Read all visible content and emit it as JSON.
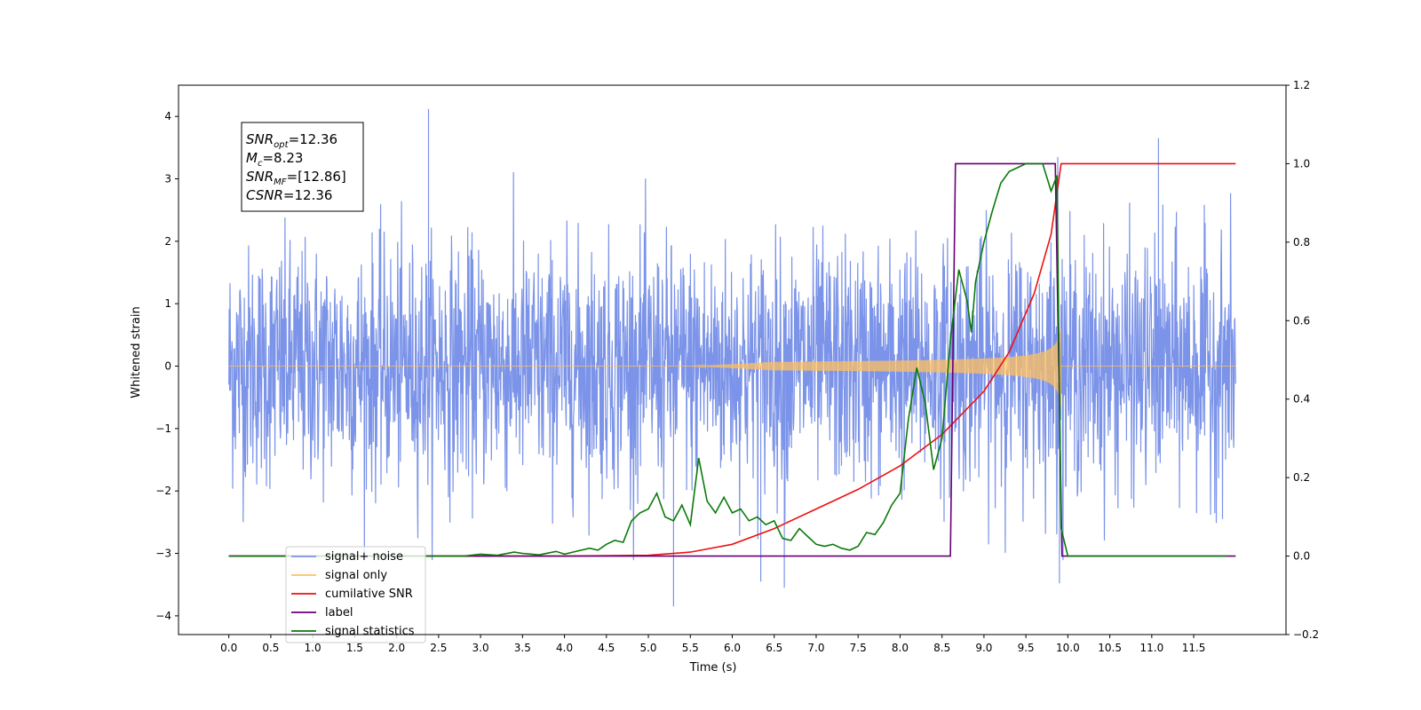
{
  "chart_data": {
    "type": "line",
    "title": "",
    "xlabel": "Time (s)",
    "ylabel": "Whitened strain",
    "xlim": [
      -0.6,
      12.6
    ],
    "ylim": [
      -4.3,
      4.5
    ],
    "y2lim": [
      -0.2,
      1.2
    ],
    "x_ticks": [
      0.0,
      0.5,
      1.0,
      1.5,
      2.0,
      2.5,
      3.0,
      3.5,
      4.0,
      4.5,
      5.0,
      5.5,
      6.0,
      6.5,
      7.0,
      7.5,
      8.0,
      8.5,
      9.0,
      9.5,
      10.0,
      10.5,
      11.0,
      11.5
    ],
    "x_tick_labels": [
      "0.0",
      "0.5",
      "1.0",
      "1.5",
      "2.0",
      "2.5",
      "3.0",
      "3.5",
      "4.0",
      "4.5",
      "5.0",
      "5.5",
      "6.0",
      "6.5",
      "7.0",
      "7.5",
      "8.0",
      "8.5",
      "9.0",
      "9.5",
      "10.0",
      "10.5",
      "11.0",
      "11.5"
    ],
    "y_ticks": [
      -4,
      -3,
      -2,
      -1,
      0,
      1,
      2,
      3,
      4
    ],
    "y_tick_labels": [
      "−4",
      "−3",
      "−2",
      "−1",
      "0",
      "1",
      "2",
      "3",
      "4"
    ],
    "y2_ticks": [
      -0.2,
      0.0,
      0.2,
      0.4,
      0.6,
      0.8,
      1.0,
      1.2
    ],
    "y2_tick_labels": [
      "−0.2",
      "0.0",
      "0.2",
      "0.4",
      "0.6",
      "0.8",
      "1.0",
      "1.2"
    ],
    "grid": false,
    "legend_position": "bottom-left",
    "annotation": {
      "lines": [
        {
          "main": "SNR",
          "sub": "opt",
          "value": "=12.36"
        },
        {
          "main": "M",
          "sub": "c",
          "value": "=8.23"
        },
        {
          "main": "SNR",
          "sub": "MF",
          "value": "=[12.86]"
        },
        {
          "main": "CSNR",
          "sub": "",
          "value": "=12.36"
        }
      ]
    },
    "series": [
      {
        "name": "signal+ noise",
        "axis": "left",
        "color": "#7b93e8",
        "kind": "noise",
        "x_range": [
          0.0,
          12.0
        ],
        "std": 1.0,
        "spikes": [
          {
            "x": 2.38,
            "y": 4.12
          },
          {
            "x": 11.08,
            "y": 3.65
          },
          {
            "x": 9.88,
            "y": 3.35
          },
          {
            "x": 5.3,
            "y": -3.85
          },
          {
            "x": 6.62,
            "y": -3.55
          },
          {
            "x": 6.34,
            "y": -3.45
          },
          {
            "x": 9.9,
            "y": -3.48
          }
        ]
      },
      {
        "name": "signal only",
        "axis": "left",
        "color": "#ffc060",
        "kind": "chirp",
        "t_start": 5.5,
        "t_merger": 9.92,
        "peak_amplitude": 1.0
      },
      {
        "name": "cumilative SNR",
        "axis": "right",
        "color": "#ee1111",
        "x": [
          0.0,
          4.0,
          5.0,
          5.5,
          6.0,
          6.5,
          7.0,
          7.5,
          8.0,
          8.5,
          9.0,
          9.3,
          9.6,
          9.8,
          9.92,
          10.0,
          12.0
        ],
        "y": [
          0.0,
          0.0,
          0.002,
          0.01,
          0.03,
          0.07,
          0.12,
          0.17,
          0.23,
          0.31,
          0.42,
          0.52,
          0.67,
          0.82,
          1.0,
          1.0,
          1.0
        ]
      },
      {
        "name": "label",
        "axis": "right",
        "color": "#660077",
        "x": [
          0.0,
          8.6,
          8.66,
          9.85,
          9.93,
          12.0
        ],
        "y": [
          0.0,
          0.0,
          1.0,
          1.0,
          0.0,
          0.0
        ]
      },
      {
        "name": "signal statistics",
        "axis": "right",
        "color": "#0a7a0a",
        "x": [
          0.0,
          2.8,
          3.0,
          3.2,
          3.4,
          3.5,
          3.7,
          3.9,
          4.0,
          4.1,
          4.3,
          4.4,
          4.5,
          4.6,
          4.7,
          4.8,
          4.9,
          5.0,
          5.1,
          5.2,
          5.3,
          5.4,
          5.5,
          5.6,
          5.7,
          5.8,
          5.9,
          6.0,
          6.1,
          6.2,
          6.3,
          6.4,
          6.5,
          6.6,
          6.7,
          6.8,
          6.9,
          7.0,
          7.1,
          7.2,
          7.3,
          7.4,
          7.5,
          7.6,
          7.7,
          7.8,
          7.9,
          8.0,
          8.1,
          8.2,
          8.3,
          8.4,
          8.5,
          8.6,
          8.7,
          8.8,
          8.85,
          8.9,
          9.0,
          9.1,
          9.2,
          9.3,
          9.4,
          9.5,
          9.6,
          9.7,
          9.8,
          9.87,
          9.92,
          10.0,
          11.9
        ],
        "y": [
          0.0,
          0.0,
          0.005,
          0.002,
          0.01,
          0.007,
          0.003,
          0.012,
          0.005,
          0.01,
          0.02,
          0.015,
          0.03,
          0.04,
          0.035,
          0.09,
          0.11,
          0.12,
          0.16,
          0.1,
          0.09,
          0.13,
          0.08,
          0.25,
          0.14,
          0.11,
          0.15,
          0.11,
          0.12,
          0.09,
          0.1,
          0.08,
          0.09,
          0.045,
          0.04,
          0.07,
          0.05,
          0.03,
          0.025,
          0.03,
          0.02,
          0.015,
          0.025,
          0.06,
          0.055,
          0.085,
          0.13,
          0.16,
          0.35,
          0.48,
          0.39,
          0.22,
          0.3,
          0.55,
          0.73,
          0.65,
          0.57,
          0.7,
          0.8,
          0.88,
          0.95,
          0.98,
          0.99,
          1.0,
          1.0,
          1.0,
          0.93,
          0.97,
          0.07,
          0.0,
          0.0
        ]
      }
    ]
  }
}
